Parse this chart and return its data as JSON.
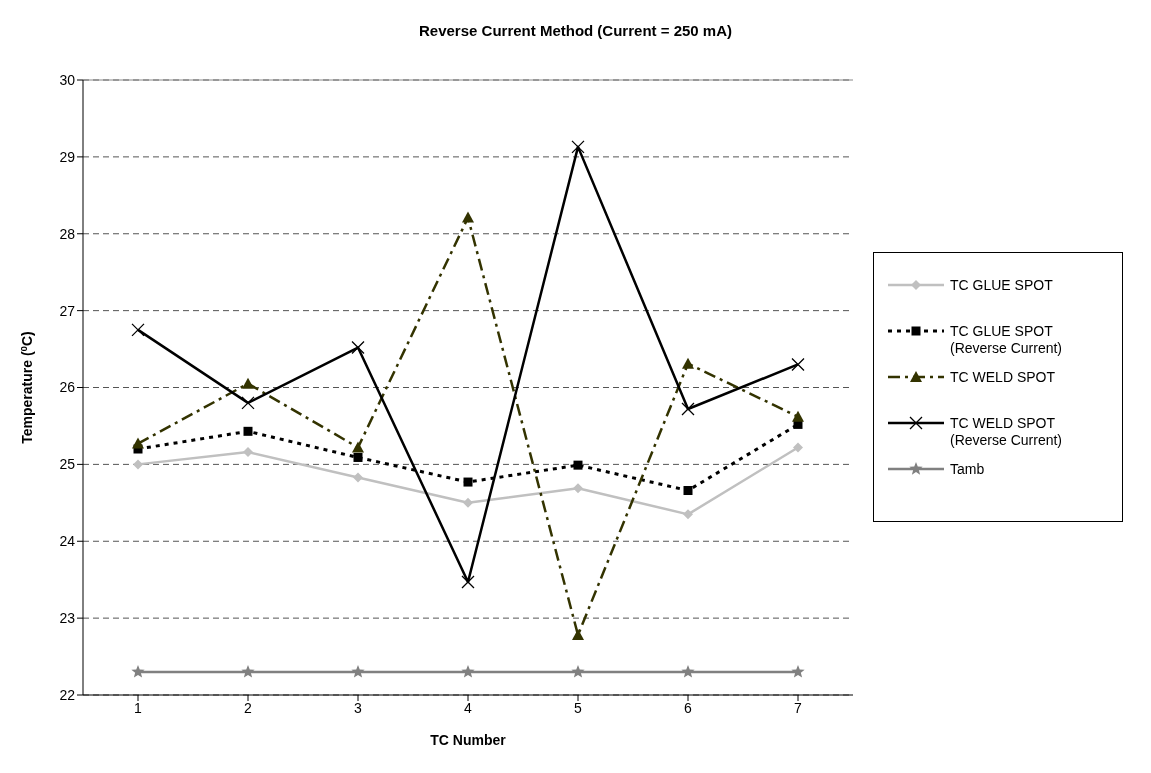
{
  "chart_data": {
    "type": "line",
    "title": "Reverse Current Method (Current = 250 mA)",
    "xlabel": "TC Number",
    "ylabel": "Temperature ($^{0}$C)",
    "categories": [
      "1",
      "2",
      "3",
      "4",
      "5",
      "6",
      "7"
    ],
    "series": [
      {
        "name": "TC GLUE SPOT",
        "color": "#c0c0c0",
        "marker": "diamond",
        "line_style": "solid",
        "values": [
          25.0,
          25.16,
          24.83,
          24.5,
          24.69,
          24.35,
          25.22
        ]
      },
      {
        "name": "TC GLUE SPOT (Reverse Current)",
        "color": "#000000",
        "marker": "square",
        "line_style": "dotted",
        "values": [
          25.2,
          25.43,
          25.09,
          24.77,
          24.99,
          24.66,
          25.52
        ]
      },
      {
        "name": "TC WELD SPOT",
        "color": "#333300",
        "marker": "triangle",
        "line_style": "dashed",
        "values": [
          25.27,
          26.05,
          25.22,
          28.21,
          22.78,
          26.31,
          25.62
        ]
      },
      {
        "name": "TC WELD SPOT (Reverse Current)",
        "color": "#000000",
        "marker": "cross",
        "line_style": "solid",
        "values": [
          26.75,
          25.8,
          26.52,
          23.47,
          29.13,
          25.72,
          26.3
        ]
      },
      {
        "name": "Tamb",
        "color": "#808080",
        "marker": "star",
        "line_style": "solid",
        "values": [
          22.3,
          22.3,
          22.3,
          22.3,
          22.3,
          22.3,
          22.3
        ]
      }
    ],
    "ylim": [
      22,
      30
    ],
    "yticks": [
      22,
      23,
      24,
      25,
      26,
      27,
      28,
      29,
      30
    ],
    "grid": "y",
    "legend": "right"
  }
}
